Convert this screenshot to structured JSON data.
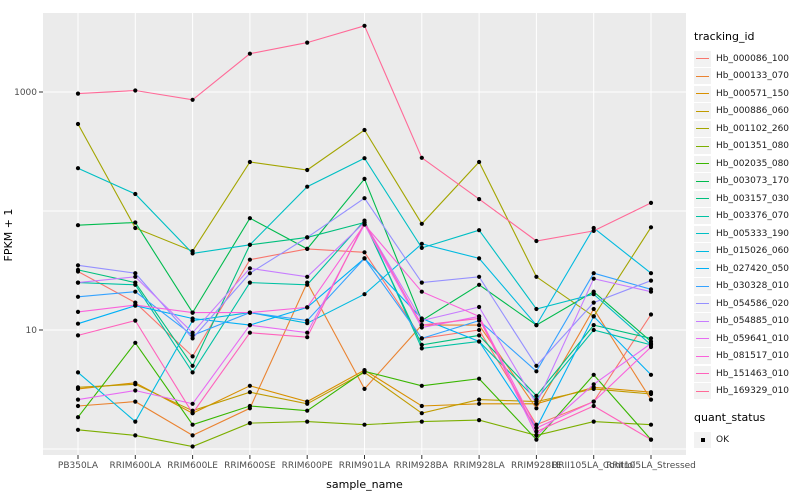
{
  "figure": {
    "panel_bg": "#EBEBEB",
    "grid_color": "#FFFFFF",
    "axis_text_color": "#4D4D4D",
    "tick_color": "#333333"
  },
  "axes": {
    "x_title": "sample_name",
    "y_title": "FPKM + 1",
    "y_tick_labels": [
      "1000",
      "10"
    ],
    "y_tick_values": [
      1000,
      10
    ],
    "y_gridline_values": [
      1,
      10,
      100,
      1000
    ]
  },
  "legend": {
    "tracking_title": "tracking_id",
    "quant_title": "quant_status",
    "quant_items": [
      {
        "label": "OK",
        "marker": "black-point"
      }
    ]
  },
  "chart_data": {
    "type": "line",
    "title": "",
    "xlabel": "sample_name",
    "ylabel": "FPKM + 1",
    "y_scale": "log10",
    "ylim": [
      0.9,
      4500
    ],
    "grid": "on",
    "legend_position": "right",
    "point_marker": "black dot at every vertex (quant_status = OK)",
    "categories": [
      "PB350LA",
      "RRIM600LA",
      "RRIM600LE",
      "RRIM600SE",
      "RRIM600PE",
      "RRIM901LA",
      "RRIM928BA",
      "RRIM928LA",
      "RRIM928LE",
      "RRII105LA_Control",
      "RRII105LA_Stressed"
    ],
    "series": [
      {
        "name": "Hb_000086_100",
        "color": "#F8766D",
        "values": [
          31,
          17,
          6,
          39,
          48,
          45,
          8.5,
          10,
          1.6,
          2.5,
          13.5
        ]
      },
      {
        "name": "Hb_000133_070",
        "color": "#EA8331",
        "values": [
          2.3,
          2.5,
          1.3,
          2.2,
          25,
          3.2,
          11,
          11,
          2.2,
          15,
          2.6
        ]
      },
      {
        "name": "Hb_000571_150",
        "color": "#D89000",
        "values": [
          3.2,
          3.6,
          2.0,
          3.4,
          2.5,
          4.6,
          2.3,
          2.4,
          2.4,
          3.3,
          3.0
        ]
      },
      {
        "name": "Hb_000886_060",
        "color": "#C09B00",
        "values": [
          3.3,
          3.5,
          2.1,
          3.0,
          2.4,
          4.4,
          2.0,
          2.6,
          2.5,
          3.2,
          2.9
        ]
      },
      {
        "name": "Hb_001102_260",
        "color": "#A3A500",
        "values": [
          538,
          72,
          46,
          258,
          221,
          479,
          78,
          258,
          28,
          13,
          73
        ]
      },
      {
        "name": "Hb_001351_080",
        "color": "#7CAE00",
        "values": [
          1.45,
          1.3,
          1.05,
          1.65,
          1.7,
          1.6,
          1.7,
          1.75,
          1.3,
          1.7,
          1.6
        ]
      },
      {
        "name": "Hb_002035_080",
        "color": "#39B600",
        "values": [
          1.85,
          7.8,
          1.6,
          2.3,
          2.1,
          4.5,
          3.4,
          3.9,
          1.2,
          4.2,
          1.2
        ]
      },
      {
        "name": "Hb_003073_170",
        "color": "#00BB4E",
        "values": [
          76,
          80,
          14,
          87,
          48,
          186,
          12,
          24,
          11,
          21,
          8
        ]
      },
      {
        "name": "Hb_003157_030",
        "color": "#00BF7D",
        "values": [
          32,
          25,
          5,
          52,
          60,
          80,
          7.5,
          9,
          2.8,
          11,
          8.5
        ]
      },
      {
        "name": "Hb_003376_070",
        "color": "#00C1A3",
        "values": [
          25,
          24,
          4.4,
          25,
          24,
          83,
          7,
          8,
          2.6,
          10,
          7.5
        ]
      },
      {
        "name": "Hb_005333_190",
        "color": "#00BFC4",
        "values": [
          229,
          139,
          44,
          52,
          160,
          278,
          49,
          69,
          15,
          20,
          7.5
        ]
      },
      {
        "name": "Hb_015026_060",
        "color": "#00BAE0",
        "values": [
          4.4,
          1.7,
          12,
          14,
          11.4,
          20,
          53,
          40,
          11,
          72,
          30
        ]
      },
      {
        "name": "Hb_027420_050",
        "color": "#00B0F6",
        "values": [
          11.3,
          16,
          12.5,
          11,
          15.5,
          40,
          12.5,
          8,
          1.5,
          13,
          4.2
        ]
      },
      {
        "name": "Hb_030328_010",
        "color": "#35A2FF",
        "values": [
          19,
          21,
          9,
          14,
          12,
          40,
          8.5,
          12,
          4.5,
          30,
          22
        ]
      },
      {
        "name": "Hb_054586_020",
        "color": "#9590FF",
        "values": [
          35,
          30,
          8.5,
          30,
          60,
          128,
          25,
          28,
          5,
          17,
          26
        ]
      },
      {
        "name": "Hb_054885_010",
        "color": "#C77CFF",
        "values": [
          25,
          28,
          9.5,
          33,
          28,
          80,
          12,
          15.6,
          2.4,
          27,
          21
        ]
      },
      {
        "name": "Hb_059641_010",
        "color": "#E76BF3",
        "values": [
          2.6,
          3.1,
          2.4,
          11,
          9.5,
          77,
          10.5,
          13,
          1.3,
          3.5,
          7.7
        ]
      },
      {
        "name": "Hb_081517_010",
        "color": "#FA62DB",
        "values": [
          14.2,
          16.2,
          14,
          14,
          15.5,
          77,
          21,
          13,
          1.5,
          2.5,
          7.2
        ]
      },
      {
        "name": "Hb_151463_010",
        "color": "#FF62BC",
        "values": [
          9,
          12,
          2.0,
          9.5,
          8.7,
          80,
          11,
          12.5,
          1.4,
          2.3,
          1.2
        ]
      },
      {
        "name": "Hb_169329_010",
        "color": "#FF6A98",
        "values": [
          970,
          1030,
          860,
          2100,
          2600,
          3600,
          280,
          126,
          56,
          68,
          117
        ]
      }
    ]
  }
}
